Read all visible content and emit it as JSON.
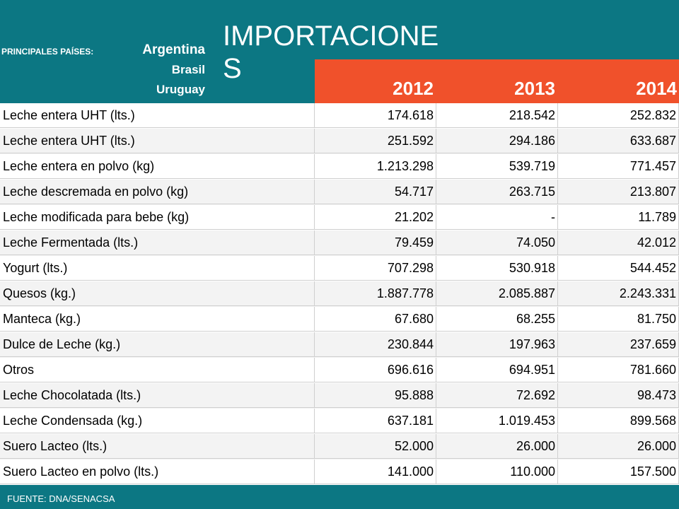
{
  "header": {
    "countries_label": "PRINCIPALES PAÍSES:",
    "countries": [
      "Argentina",
      "Brasil",
      "Uruguay"
    ],
    "title": "IMPORTACIONES"
  },
  "table": {
    "columns": [
      "2012",
      "2013",
      "2014"
    ],
    "rows": [
      [
        "Leche entera UHT (lts.)",
        "174.618",
        "218.542",
        "252.832"
      ],
      [
        "Leche entera UHT (lts.)",
        "251.592",
        "294.186",
        "633.687"
      ],
      [
        "Leche entera en polvo (kg)",
        "1.213.298",
        "539.719",
        "771.457"
      ],
      [
        "Leche descremada en polvo (kg)",
        "54.717",
        "263.715",
        "213.807"
      ],
      [
        "Leche modificada para bebe (kg)",
        "21.202",
        "-",
        "11.789"
      ],
      [
        "Leche Fermentada (lts.)",
        "79.459",
        "74.050",
        "42.012"
      ],
      [
        "Yogurt (lts.)",
        "707.298",
        "530.918",
        "544.452"
      ],
      [
        "Quesos (kg.)",
        "1.887.778",
        "2.085.887",
        "2.243.331"
      ],
      [
        "Manteca (kg.)",
        "67.680",
        "68.255",
        "81.750"
      ],
      [
        "Dulce de Leche (kg.)",
        "230.844",
        "197.963",
        "237.659"
      ],
      [
        "Otros",
        "696.616",
        "694.951",
        "781.660"
      ],
      [
        "Leche Chocolatada (lts.)",
        "95.888",
        "72.692",
        "98.473"
      ],
      [
        "Leche Condensada (kg.)",
        "637.181",
        "1.019.453",
        "899.568"
      ],
      [
        "Suero Lacteo (lts.)",
        "52.000",
        "26.000",
        "26.000"
      ],
      [
        "Suero Lacteo en polvo (lts.)",
        "141.000",
        "110.000",
        "157.500"
      ]
    ]
  },
  "footer": {
    "source": "FUENTE: DNA/SENACSA"
  }
}
